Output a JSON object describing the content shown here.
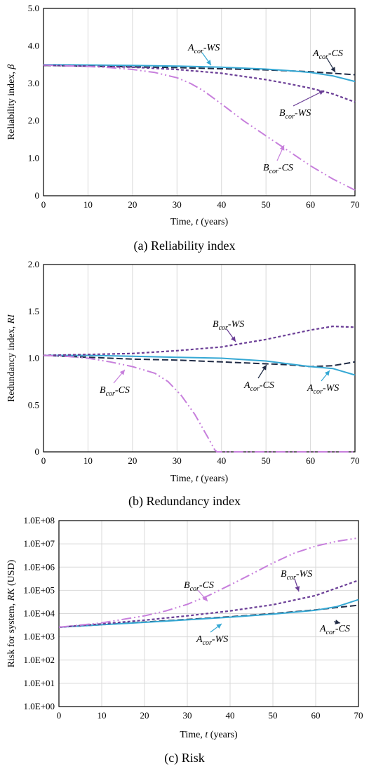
{
  "colors": {
    "Acor-CS": "#1f2a44",
    "Acor-WS": "#35a8d4",
    "Bcor-WS": "#6a3d96",
    "Bcor-CS": "#c77fdc",
    "grid": "#d9d9d9"
  },
  "chart_data": [
    {
      "type": "line",
      "caption": "(a) Reliability index",
      "xlabel": "Time, t (years)",
      "ylabel": "Reliability index, β",
      "xlim": [
        0,
        70
      ],
      "ylim": [
        0,
        5
      ],
      "xticks": [
        0,
        10,
        20,
        30,
        40,
        50,
        60,
        70
      ],
      "yticks": [
        0,
        1,
        2,
        3,
        4,
        5
      ],
      "ytick_labels": [
        "0",
        "1.0",
        "2.0",
        "3.0",
        "4.0",
        "5.0"
      ],
      "grid": "vertical",
      "series": [
        {
          "name": "Acor-CS",
          "style": "dashed",
          "x": [
            0,
            10,
            20,
            30,
            40,
            50,
            60,
            65,
            70
          ],
          "y": [
            3.48,
            3.46,
            3.44,
            3.42,
            3.39,
            3.36,
            3.31,
            3.27,
            3.23
          ]
        },
        {
          "name": "Acor-WS",
          "style": "solid",
          "x": [
            0,
            10,
            20,
            30,
            40,
            50,
            55,
            60,
            65,
            70
          ],
          "y": [
            3.5,
            3.49,
            3.48,
            3.46,
            3.43,
            3.38,
            3.34,
            3.29,
            3.2,
            3.05
          ]
        },
        {
          "name": "Bcor-WS",
          "style": "short-dash",
          "x": [
            0,
            10,
            20,
            30,
            40,
            50,
            55,
            60,
            65,
            70
          ],
          "y": [
            3.48,
            3.46,
            3.43,
            3.37,
            3.27,
            3.1,
            2.99,
            2.87,
            2.72,
            2.5
          ]
        },
        {
          "name": "Bcor-CS",
          "style": "dash-dot-dot",
          "x": [
            0,
            5,
            10,
            15,
            20,
            25,
            30,
            33,
            36,
            40,
            45,
            50,
            55,
            60,
            65,
            70
          ],
          "y": [
            3.49,
            3.47,
            3.45,
            3.42,
            3.37,
            3.29,
            3.15,
            3.0,
            2.8,
            2.45,
            2.0,
            1.6,
            1.2,
            0.8,
            0.45,
            0.15
          ]
        }
      ],
      "labels": [
        {
          "series": "Acor-WS",
          "main": "A",
          "sub": "cor",
          "tail": "-WS"
        },
        {
          "series": "Acor-CS",
          "main": "A",
          "sub": "cor",
          "tail": "-CS"
        },
        {
          "series": "Bcor-WS",
          "main": "B",
          "sub": "cor",
          "tail": "-WS"
        },
        {
          "series": "Bcor-CS",
          "main": "B",
          "sub": "cor",
          "tail": "-CS"
        }
      ]
    },
    {
      "type": "line",
      "caption": "(b) Redundancy index",
      "xlabel": "Time, t (years)",
      "ylabel": "Redundancy index, RI",
      "xlim": [
        0,
        70
      ],
      "ylim": [
        0,
        2
      ],
      "xticks": [
        0,
        10,
        20,
        30,
        40,
        50,
        60,
        70
      ],
      "yticks": [
        0,
        0.5,
        1,
        1.5,
        2
      ],
      "ytick_labels": [
        "0",
        "0.5",
        "1.0",
        "1.5",
        "2.0"
      ],
      "grid": "vertical",
      "series": [
        {
          "name": "Acor-CS",
          "style": "dashed",
          "x": [
            0,
            10,
            20,
            30,
            40,
            50,
            55,
            60,
            65,
            70
          ],
          "y": [
            1.03,
            1.01,
            0.99,
            0.98,
            0.96,
            0.94,
            0.93,
            0.91,
            0.92,
            0.96
          ]
        },
        {
          "name": "Acor-WS",
          "style": "solid",
          "x": [
            0,
            10,
            20,
            30,
            40,
            50,
            55,
            60,
            65,
            70
          ],
          "y": [
            1.03,
            1.03,
            1.02,
            1.01,
            1.0,
            0.97,
            0.94,
            0.91,
            0.89,
            0.82
          ]
        },
        {
          "name": "Bcor-WS",
          "style": "short-dash",
          "x": [
            0,
            10,
            20,
            30,
            40,
            45,
            50,
            55,
            60,
            65,
            70
          ],
          "y": [
            1.03,
            1.04,
            1.05,
            1.08,
            1.12,
            1.16,
            1.2,
            1.25,
            1.3,
            1.34,
            1.33
          ]
        },
        {
          "name": "Bcor-CS",
          "style": "dash-dot-dot",
          "x": [
            0,
            5,
            10,
            15,
            20,
            25,
            28,
            31,
            34,
            37,
            38.5,
            39,
            45,
            50,
            55,
            60,
            65,
            70
          ],
          "y": [
            1.03,
            1.02,
            1.0,
            0.96,
            0.91,
            0.84,
            0.75,
            0.6,
            0.4,
            0.15,
            0.02,
            0,
            0,
            0,
            0,
            0,
            0,
            0
          ]
        }
      ],
      "labels": [
        {
          "series": "Bcor-WS",
          "main": "B",
          "sub": "cor",
          "tail": "-WS"
        },
        {
          "series": "Bcor-CS",
          "main": "B",
          "sub": "cor",
          "tail": "-CS"
        },
        {
          "series": "Acor-CS",
          "main": "A",
          "sub": "cor",
          "tail": "-CS"
        },
        {
          "series": "Acor-WS",
          "main": "A",
          "sub": "cor",
          "tail": "-WS"
        }
      ]
    },
    {
      "type": "line",
      "caption": "(c) Risk",
      "xlabel": "Time, t (years)",
      "ylabel": "Risk for system, RK (USD)",
      "yscale": "log",
      "xlim": [
        0,
        70
      ],
      "ylim": [
        1,
        100000000
      ],
      "xticks": [
        0,
        10,
        20,
        30,
        40,
        50,
        60,
        70
      ],
      "yticks": [
        1,
        10,
        100,
        1000,
        10000,
        100000,
        1000000,
        10000000,
        100000000
      ],
      "ytick_labels": [
        "1.0E+00",
        "1.0E+01",
        "1.0E+02",
        "1.0E+03",
        "1.0E+04",
        "1.0E+05",
        "1.0E+06",
        "1.0E+07",
        "1.0E+08"
      ],
      "grid": "both",
      "series": [
        {
          "name": "Acor-CS",
          "style": "dashed",
          "x": [
            0,
            10,
            20,
            30,
            40,
            50,
            60,
            70
          ],
          "y": [
            2600,
            3300,
            4300,
            5600,
            7300,
            10000,
            14500,
            23000
          ]
        },
        {
          "name": "Acor-WS",
          "style": "solid",
          "x": [
            0,
            10,
            20,
            30,
            40,
            50,
            60,
            65,
            70
          ],
          "y": [
            2600,
            3300,
            4200,
            5400,
            7000,
            9500,
            14000,
            20000,
            40000
          ]
        },
        {
          "name": "Bcor-WS",
          "style": "short-dash",
          "x": [
            0,
            10,
            20,
            30,
            40,
            50,
            60,
            70
          ],
          "y": [
            2600,
            3600,
            5200,
            8000,
            13000,
            24000,
            60000,
            270000
          ]
        },
        {
          "name": "Bcor-CS",
          "style": "dash-dot-dot",
          "x": [
            0,
            10,
            20,
            25,
            30,
            35,
            40,
            45,
            50,
            55,
            60,
            65,
            70
          ],
          "y": [
            2600,
            4000,
            8000,
            13000,
            25000,
            60000,
            170000,
            500000,
            1500000,
            4000000,
            8000000,
            13000000,
            18000000
          ]
        }
      ],
      "labels": [
        {
          "series": "Bcor-CS",
          "main": "B",
          "sub": "cor",
          "tail": "-CS"
        },
        {
          "series": "Bcor-WS",
          "main": "B",
          "sub": "cor",
          "tail": "-WS"
        },
        {
          "series": "Acor-WS",
          "main": "A",
          "sub": "cor",
          "tail": "-WS"
        },
        {
          "series": "Acor-CS",
          "main": "A",
          "sub": "cor",
          "tail": "-CS"
        }
      ]
    }
  ]
}
